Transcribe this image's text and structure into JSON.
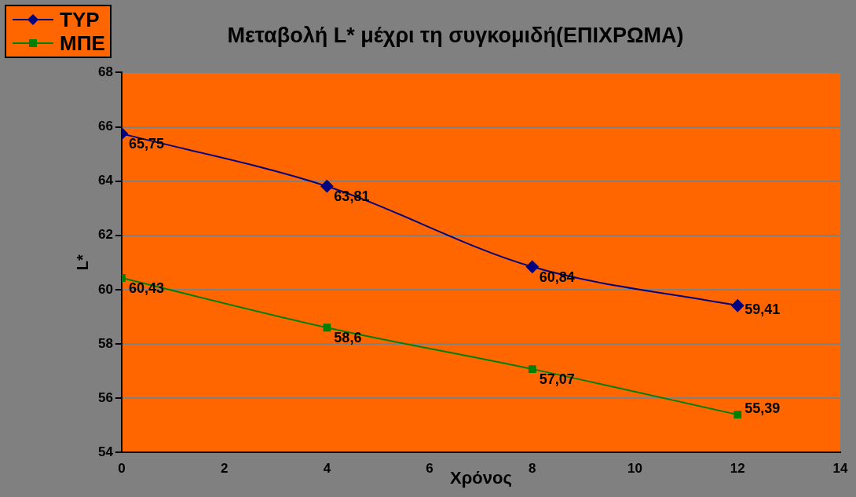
{
  "chart_data": {
    "type": "line",
    "title": "Μεταβολή L* μέχρι τη συγκομιδή(ΕΠΙΧΡΩΜΑ)",
    "xlabel": "Χρόνος",
    "ylabel": "L*",
    "x": [
      0,
      4,
      8,
      12
    ],
    "series": [
      {
        "name": "ΤΥΡ",
        "color": "#000080",
        "marker": "diamond",
        "values": [
          65.75,
          63.81,
          60.84,
          59.41
        ],
        "value_labels": [
          "65,75",
          "63,81",
          "60,84",
          "59,41"
        ]
      },
      {
        "name": "ΜΠΕ",
        "color": "#008000",
        "marker": "square",
        "values": [
          60.43,
          58.6,
          57.07,
          55.39
        ],
        "value_labels": [
          "60,43",
          "58,6",
          "57,07",
          "55,39"
        ]
      }
    ],
    "xlim": [
      0,
      14
    ],
    "xticks": [
      0,
      2,
      4,
      6,
      8,
      10,
      12,
      14
    ],
    "ylim": [
      54,
      68
    ],
    "yticks": [
      54,
      56,
      58,
      60,
      62,
      64,
      66,
      68
    ],
    "grid": "y",
    "legend": "top left"
  }
}
